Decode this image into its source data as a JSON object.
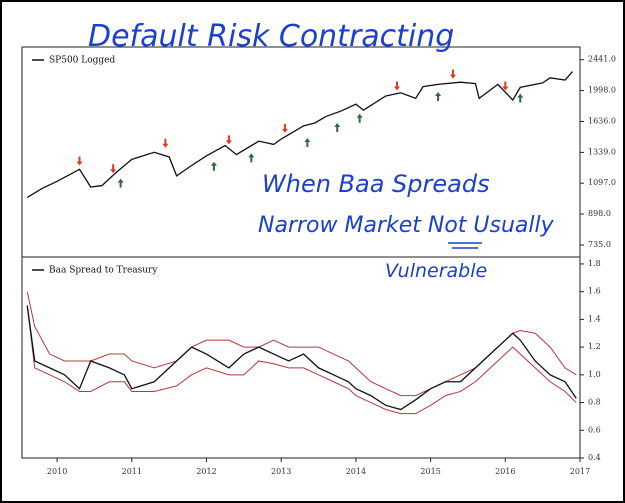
{
  "chart_data": [
    {
      "type": "line",
      "log_scale": true,
      "title": "Default Risk Contracting",
      "annotations": [
        "When Baa Spreads",
        "Narrow Market Not Usually",
        "Vulnerable"
      ],
      "x": [
        2009.6,
        2009.8,
        2010.0,
        2010.3,
        2010.45,
        2010.6,
        2010.8,
        2011.0,
        2011.3,
        2011.5,
        2011.6,
        2011.8,
        2012.0,
        2012.25,
        2012.4,
        2012.7,
        2012.9,
        2013.0,
        2013.3,
        2013.45,
        2013.6,
        2013.8,
        2014.0,
        2014.1,
        2014.4,
        2014.6,
        2014.8,
        2014.9,
        2015.1,
        2015.4,
        2015.6,
        2015.65,
        2015.9,
        2016.1,
        2016.2,
        2016.5,
        2016.6,
        2016.8,
        2016.9
      ],
      "series": [
        {
          "name": "SP500 Logged",
          "color": "#111111",
          "values": [
            1000,
            1060,
            1110,
            1200,
            1070,
            1080,
            1180,
            1280,
            1340,
            1300,
            1150,
            1230,
            1310,
            1400,
            1320,
            1440,
            1410,
            1460,
            1590,
            1620,
            1690,
            1750,
            1830,
            1760,
            1930,
            1970,
            1900,
            2050,
            2080,
            2110,
            2090,
            1900,
            2080,
            1880,
            2040,
            2100,
            2170,
            2140,
            2260
          ]
        }
      ],
      "markers": [
        {
          "direction": "down",
          "color": "#e03a20",
          "x": [
            2010.3,
            2010.75,
            2011.45,
            2012.3,
            2013.05,
            2014.55,
            2015.3,
            2016.0
          ],
          "values": [
            1230,
            1170,
            1380,
            1410,
            1520,
            2000,
            2160,
            2000
          ]
        },
        {
          "direction": "up",
          "color": "#2f6b3a",
          "x": [
            2010.85,
            2012.1,
            2012.6,
            2013.35,
            2013.75,
            2014.05,
            2015.1,
            2016.2
          ],
          "values": [
            1130,
            1260,
            1330,
            1470,
            1620,
            1720,
            1980,
            1960
          ]
        }
      ],
      "xlim": [
        2009.53,
        2017.0
      ],
      "ylim": [
        680,
        2650
      ],
      "yticks": [
        {
          "value": 735,
          "label": "735.0"
        },
        {
          "value": 898,
          "label": "898.0"
        },
        {
          "value": 1097,
          "label": "1097.0"
        },
        {
          "value": 1339,
          "label": "1339.0"
        },
        {
          "value": 1636,
          "label": "1636.0"
        },
        {
          "value": 1998,
          "label": "1998.0"
        },
        {
          "value": 2441,
          "label": "2441.0"
        }
      ]
    },
    {
      "type": "line",
      "x": [
        2009.6,
        2009.7,
        2009.9,
        2010.1,
        2010.3,
        2010.45,
        2010.7,
        2010.9,
        2011.0,
        2011.3,
        2011.6,
        2011.8,
        2012.0,
        2012.3,
        2012.5,
        2012.7,
        2012.9,
        2013.1,
        2013.3,
        2013.5,
        2013.7,
        2013.9,
        2014.0,
        2014.2,
        2014.4,
        2014.6,
        2014.8,
        2015.0,
        2015.2,
        2015.4,
        2015.6,
        2015.8,
        2016.0,
        2016.1,
        2016.2,
        2016.4,
        2016.6,
        2016.8,
        2016.95
      ],
      "series": [
        {
          "name": "Baa Spread to Treasury",
          "color": "#111111",
          "values": [
            1.5,
            1.1,
            1.05,
            1.0,
            0.9,
            1.1,
            1.05,
            1.0,
            0.9,
            0.95,
            1.1,
            1.2,
            1.15,
            1.05,
            1.15,
            1.2,
            1.15,
            1.1,
            1.15,
            1.05,
            1.0,
            0.95,
            0.9,
            0.85,
            0.78,
            0.75,
            0.82,
            0.9,
            0.95,
            0.95,
            1.05,
            1.15,
            1.25,
            1.3,
            1.25,
            1.1,
            1.0,
            0.95,
            0.83
          ]
        }
      ],
      "bands": [
        {
          "color": "#b5393a",
          "values": [
            1.6,
            1.35,
            1.15,
            1.1,
            1.1,
            1.1,
            1.15,
            1.15,
            1.1,
            1.05,
            1.1,
            1.2,
            1.25,
            1.25,
            1.2,
            1.2,
            1.25,
            1.2,
            1.2,
            1.2,
            1.15,
            1.1,
            1.05,
            0.95,
            0.9,
            0.85,
            0.85,
            0.9,
            0.95,
            1.0,
            1.05,
            1.15,
            1.25,
            1.3,
            1.32,
            1.3,
            1.2,
            1.05,
            1.0
          ]
        },
        {
          "color": "#b5393a",
          "values": [
            1.5,
            1.05,
            1.0,
            0.95,
            0.88,
            0.88,
            0.95,
            0.95,
            0.88,
            0.88,
            0.92,
            1.0,
            1.05,
            1.0,
            1.0,
            1.1,
            1.08,
            1.05,
            1.05,
            1.0,
            0.95,
            0.9,
            0.85,
            0.8,
            0.75,
            0.72,
            0.72,
            0.78,
            0.85,
            0.88,
            0.95,
            1.05,
            1.15,
            1.2,
            1.15,
            1.05,
            0.95,
            0.88,
            0.8
          ]
        }
      ],
      "xlim": [
        2009.53,
        2017.0
      ],
      "xticks": [
        2010,
        2011,
        2012,
        2013,
        2014,
        2015,
        2016,
        2017
      ],
      "ylim": [
        0.4,
        1.85
      ],
      "yticks": [
        0.4,
        0.6,
        0.8,
        {
          "value": 1.0,
          "label": "1.0"
        },
        1.2,
        1.4,
        1.6,
        1.8
      ]
    }
  ]
}
